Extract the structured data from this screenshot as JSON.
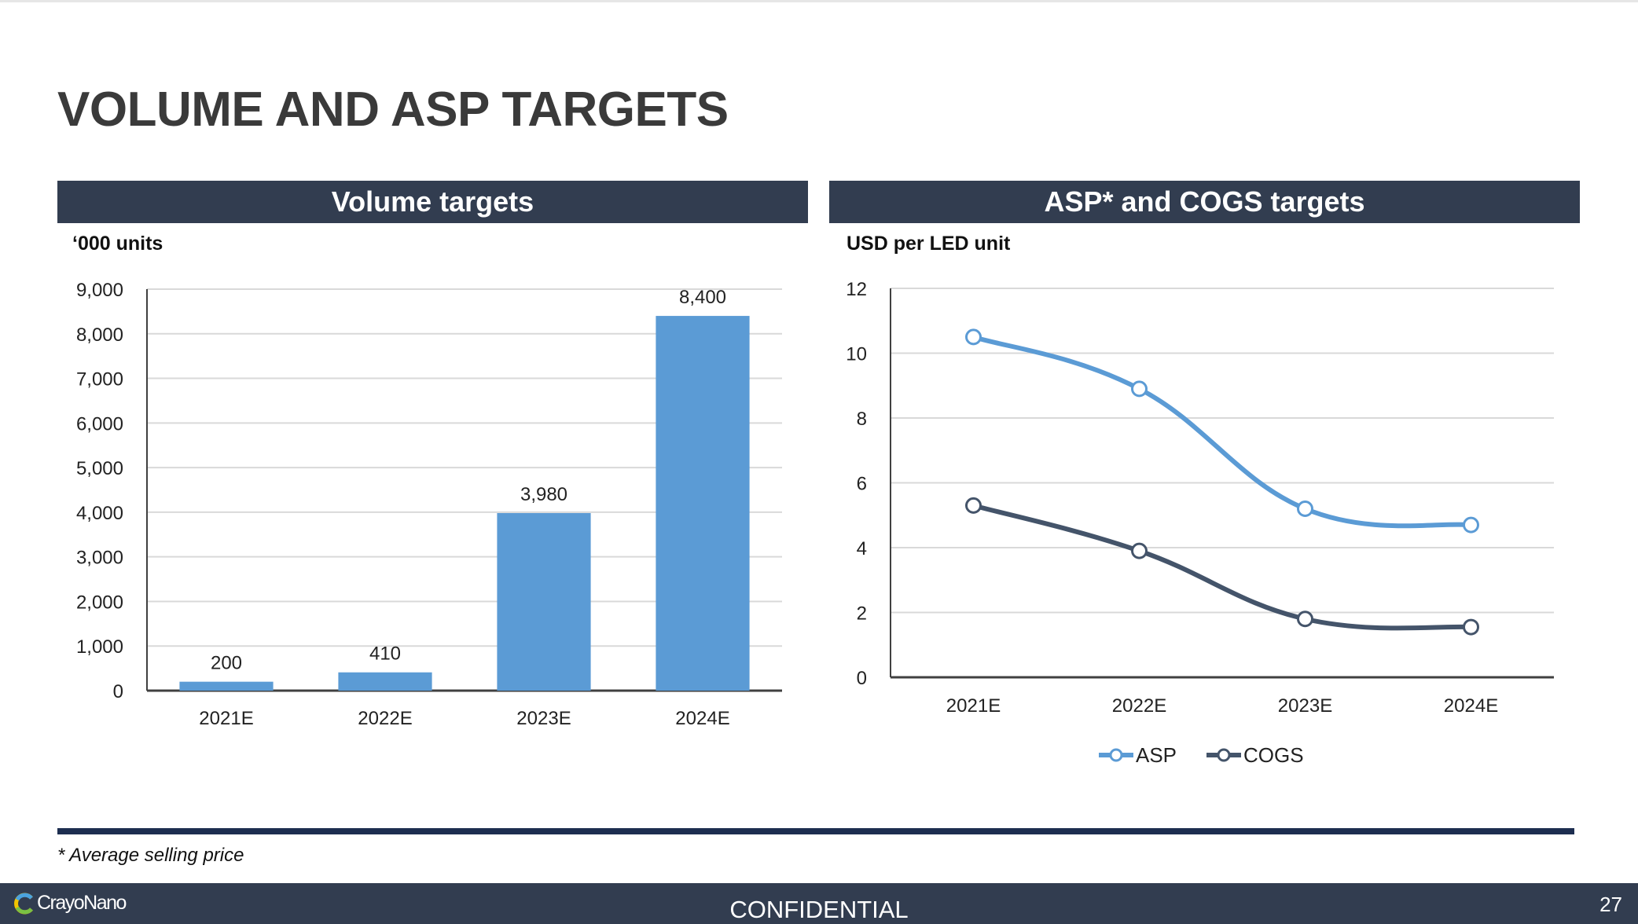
{
  "slide": {
    "title": "VOLUME AND ASP TARGETS",
    "footnote": "* Average selling price",
    "footer": {
      "logo_text": "CrayoNano",
      "confidential": "CONFIDENTIAL",
      "page_number": "27"
    }
  },
  "colors": {
    "header_bg": "#323d50",
    "bar": "#5b9bd5",
    "asp_line": "#5b9bd5",
    "cogs_line": "#44546a",
    "rule": "#1d2e50"
  },
  "chart_data": [
    {
      "type": "bar",
      "title": "Volume targets",
      "unit": "‘000 units",
      "categories": [
        "2021E",
        "2022E",
        "2023E",
        "2024E"
      ],
      "values": [
        200,
        410,
        3980,
        8400
      ],
      "data_labels": [
        "200",
        "410",
        "3,980",
        "8,400"
      ],
      "ylim": [
        0,
        9000
      ],
      "yticks": [
        "0",
        "1,000",
        "2,000",
        "3,000",
        "4,000",
        "5,000",
        "6,000",
        "7,000",
        "8,000",
        "9,000"
      ],
      "ytick_values": [
        0,
        1000,
        2000,
        3000,
        4000,
        5000,
        6000,
        7000,
        8000,
        9000
      ],
      "grid": true,
      "legend": "none"
    },
    {
      "type": "line",
      "title": "ASP* and COGS targets",
      "unit": "USD per LED unit",
      "categories": [
        "2021E",
        "2022E",
        "2023E",
        "2024E"
      ],
      "series": [
        {
          "name": "ASP",
          "values": [
            10.5,
            8.9,
            5.2,
            4.7
          ],
          "color": "#5b9bd5"
        },
        {
          "name": "COGS",
          "values": [
            5.3,
            3.9,
            1.8,
            1.55
          ],
          "color": "#44546a"
        }
      ],
      "ylim": [
        0,
        12
      ],
      "yticks": [
        "0",
        "2",
        "4",
        "6",
        "8",
        "10",
        "12"
      ],
      "ytick_values": [
        0,
        2,
        4,
        6,
        8,
        10,
        12
      ],
      "smooth": true,
      "grid": true,
      "legend": "bottom"
    }
  ]
}
